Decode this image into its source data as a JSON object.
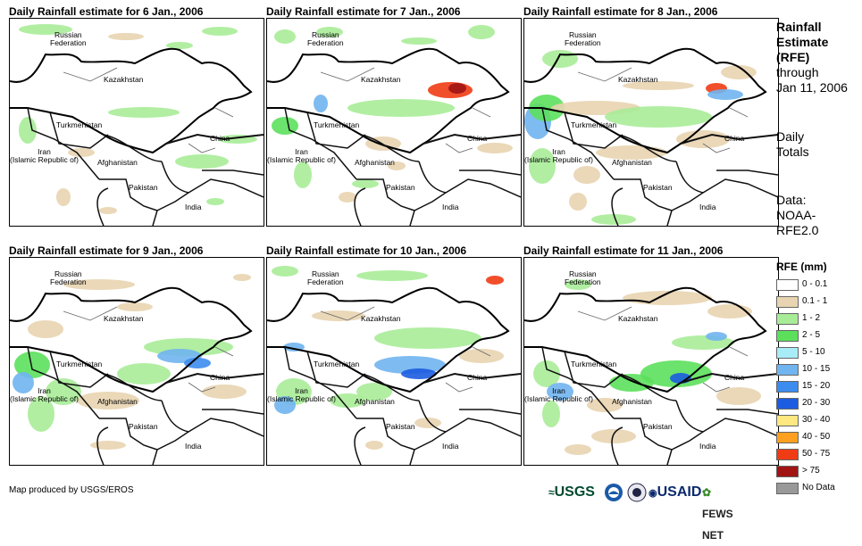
{
  "panels": [
    {
      "title": "Daily Rainfall estimate for 6 Jan., 2006"
    },
    {
      "title": "Daily Rainfall estimate for 7 Jan., 2006"
    },
    {
      "title": "Daily Rainfall estimate for 8 Jan., 2006"
    },
    {
      "title": "Daily Rainfall estimate for 9 Jan., 2006"
    },
    {
      "title": "Daily Rainfall estimate for 10 Jan., 2006"
    },
    {
      "title": "Daily Rainfall estimate for 11 Jan., 2006"
    }
  ],
  "map_labels": {
    "russia": "Russian\nFederation",
    "kazakhstan": "Kazakhstan",
    "turkmenistan": "Turkmenistan",
    "china": "China",
    "iran": "Iran\n(Islamic Republic of)",
    "afghanistan": "Afghanistan",
    "pakistan": "Pakistan",
    "india": "India"
  },
  "side_info": {
    "title_line1": "Rainfall",
    "title_line2": "Estimate",
    "title_line3": "(RFE)",
    "through": "through",
    "date": "Jan 11, 2006",
    "daily1": "Daily",
    "daily2": "Totals",
    "data1": "Data:",
    "data2": "NOAA-",
    "data3": "RFE2.0"
  },
  "legend": {
    "title": "RFE (mm)",
    "items": [
      {
        "label": "0 - 0.1",
        "color": "#ffffff"
      },
      {
        "label": "0.1 - 1",
        "color": "#e8d4b0"
      },
      {
        "label": "1 - 2",
        "color": "#a8ec98"
      },
      {
        "label": "2 - 5",
        "color": "#5ce05c"
      },
      {
        "label": "5 - 10",
        "color": "#a8ecf8"
      },
      {
        "label": "10 - 15",
        "color": "#70b4f0"
      },
      {
        "label": "15 - 20",
        "color": "#3c8cf0"
      },
      {
        "label": "20 - 30",
        "color": "#1c5ce0"
      },
      {
        "label": "30 - 40",
        "color": "#ffe880"
      },
      {
        "label": "40 - 50",
        "color": "#ffa020"
      },
      {
        "label": "50 - 75",
        "color": "#f03c14"
      },
      {
        "label": "> 75",
        "color": "#a01414"
      },
      {
        "label": "No Data",
        "color": "#999999"
      }
    ]
  },
  "credit": "Map produced by USGS/EROS",
  "logos": {
    "usgs": "USGS",
    "usaid": "USAID",
    "fews": "FEWS NET"
  }
}
